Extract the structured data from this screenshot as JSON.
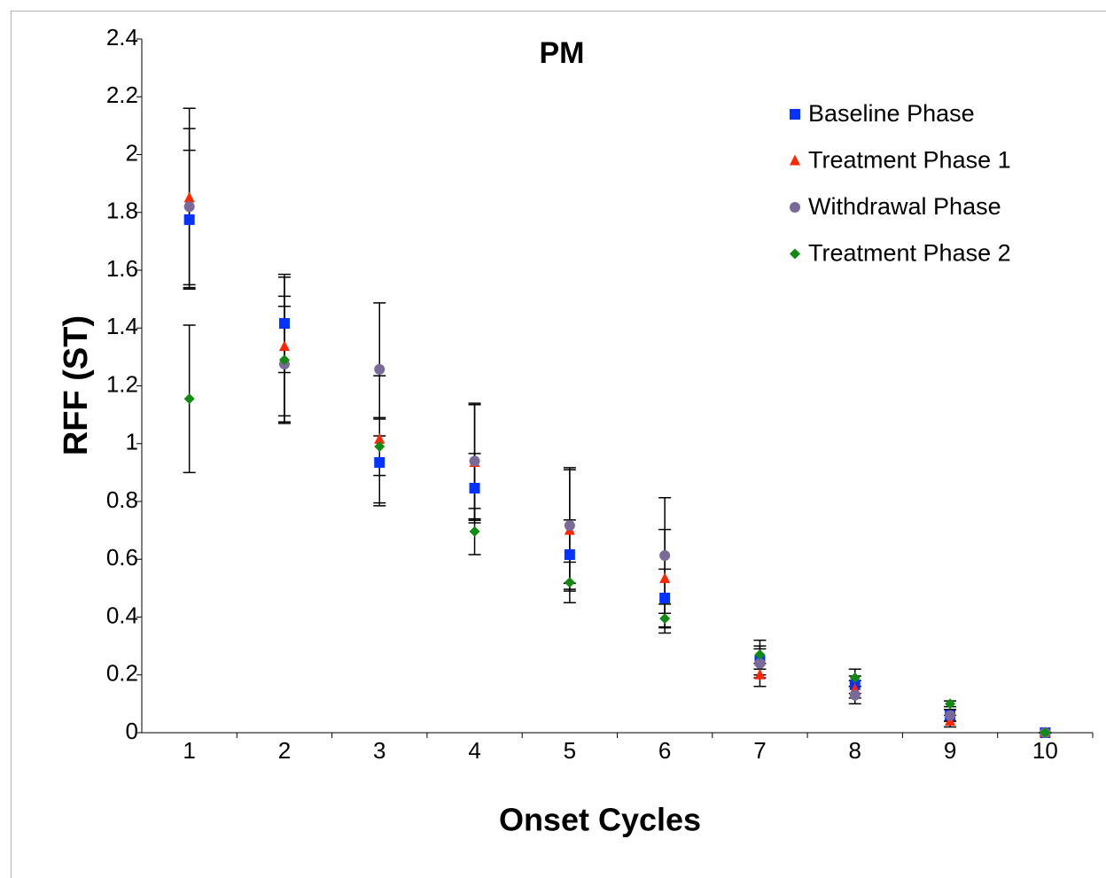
{
  "chart_data": {
    "type": "scatter",
    "title": "PM",
    "x_label": "Onset Cycles",
    "y_label": "RFF (ST)",
    "categories": [
      "1",
      "2",
      "3",
      "4",
      "5",
      "6",
      "7",
      "8",
      "9",
      "10"
    ],
    "ylim": [
      0,
      2.4
    ],
    "yticks": [
      0,
      0.2,
      0.4,
      0.6,
      0.8,
      1,
      1.2,
      1.4,
      1.6,
      1.8,
      2,
      2.2,
      2.4
    ],
    "legend": "upper right",
    "error_bar_color": "#000000",
    "series": [
      {
        "name": "Baseline Phase",
        "color": "#0433ff",
        "marker": "square",
        "values": [
          1.775,
          1.416,
          0.935,
          0.846,
          0.616,
          0.466,
          0.25,
          0.166,
          0.06,
          0
        ],
        "errors": [
          0.24,
          0.17,
          0.15,
          0.12,
          0.12,
          0.1,
          0.05,
          0.03,
          0.02,
          0
        ]
      },
      {
        "name": "Treatment Phase 1",
        "color": "#ff2600",
        "marker": "triangle",
        "values": [
          1.85,
          1.336,
          1.015,
          0.935,
          0.7,
          0.533,
          0.2,
          0.15,
          0.04,
          0
        ],
        "errors": [
          0.31,
          0.24,
          0.22,
          0.2,
          0.21,
          0.17,
          0.04,
          0.03,
          0.02,
          0
        ]
      },
      {
        "name": "Withdrawal Phase",
        "color": "#7a6a9a",
        "marker": "circle",
        "values": [
          1.82,
          1.275,
          1.257,
          0.94,
          0.717,
          0.613,
          0.24,
          0.13,
          0.06,
          0
        ],
        "errors": [
          0.27,
          0.2,
          0.23,
          0.2,
          0.2,
          0.2,
          0.05,
          0.03,
          0.02,
          0
        ]
      },
      {
        "name": "Treatment Phase 2",
        "color": "#118a11",
        "marker": "diamond",
        "values": [
          1.155,
          1.29,
          0.99,
          0.696,
          0.52,
          0.395,
          0.27,
          0.19,
          0.1,
          0
        ],
        "errors": [
          0.255,
          0.22,
          0.1,
          0.08,
          0.07,
          0.05,
          0.05,
          0.03,
          0.01,
          0
        ]
      }
    ]
  }
}
